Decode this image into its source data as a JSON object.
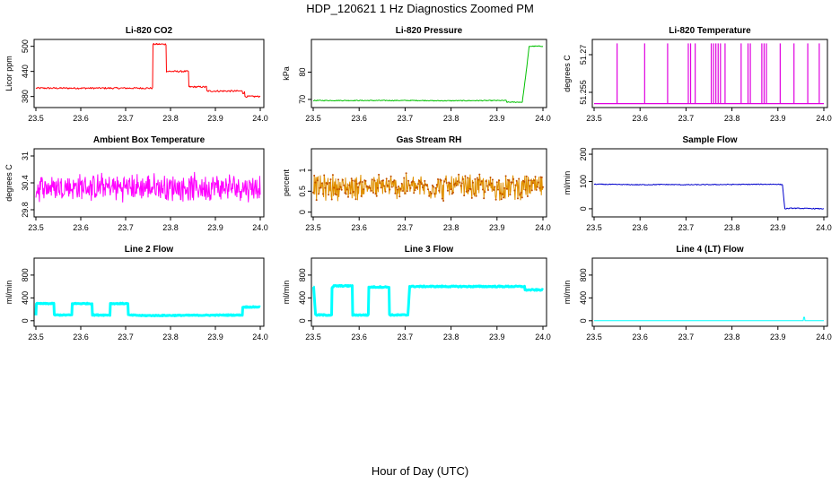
{
  "title": "HDP_120621  1 Hz Diagnostics Zoomed PM",
  "xlabel": "Hour of Day (UTC)",
  "chart_data": [
    {
      "type": "line",
      "title": "Li-820 CO2",
      "ylabel": "Licor ppm",
      "color": "#ff0000",
      "xlim": [
        23.5,
        24.0
      ],
      "ylim": [
        360,
        510
      ],
      "xticks": [
        "23.5",
        "23.6",
        "23.7",
        "23.8",
        "23.9",
        "24.0"
      ],
      "yticks": [
        380,
        440,
        500
      ],
      "noise": 2,
      "thick": 1,
      "x": [
        23.5,
        23.76,
        23.761,
        23.79,
        23.791,
        23.84,
        23.841,
        23.88,
        23.881,
        23.96,
        23.961,
        23.965,
        23.966,
        24.0
      ],
      "y": [
        400,
        400,
        505,
        505,
        440,
        440,
        403,
        403,
        393,
        393,
        388,
        390,
        380,
        380
      ]
    },
    {
      "type": "line",
      "title": "Li-820 Pressure",
      "ylabel": "kPa",
      "color": "#00c000",
      "xlim": [
        23.5,
        24.0
      ],
      "ylim": [
        68,
        91
      ],
      "xticks": [
        "23.5",
        "23.6",
        "23.7",
        "23.8",
        "23.9",
        "24.0"
      ],
      "yticks": [
        70,
        80
      ],
      "noise": 0.15,
      "thick": 1,
      "x": [
        23.5,
        23.75,
        23.76,
        23.92,
        23.921,
        23.955,
        23.965,
        23.97,
        24.0
      ],
      "y": [
        69.6,
        69.6,
        69.5,
        69.6,
        69,
        69,
        82,
        89.5,
        89.5
      ]
    },
    {
      "type": "spikes",
      "title": "Li-820 Temperature",
      "ylabel": "degrees C",
      "color": "#e000e0",
      "xlim": [
        23.5,
        24.0
      ],
      "ylim": [
        51.25,
        51.275
      ],
      "xticks": [
        "23.5",
        "23.6",
        "23.7",
        "23.8",
        "23.9",
        "24.0"
      ],
      "yticks": [
        51.255,
        51.27
      ],
      "base": 51.2505,
      "top": 51.2745,
      "x": [
        23.55,
        23.61,
        23.66,
        23.705,
        23.71,
        23.72,
        23.755,
        23.76,
        23.765,
        23.77,
        23.775,
        23.785,
        23.82,
        23.835,
        23.84,
        23.865,
        23.87,
        23.875,
        23.905,
        23.935,
        23.965,
        23.99
      ]
    },
    {
      "type": "noise",
      "title": "Ambient Box Temperature",
      "ylabel": "degrees C",
      "color": "#ff00ff",
      "xlim": [
        23.5,
        24.0
      ],
      "ylim": [
        29.7,
        31.1
      ],
      "xticks": [
        "23.5",
        "23.6",
        "23.7",
        "23.8",
        "23.9",
        "24.0"
      ],
      "yticks": [
        29.8,
        30.4,
        31.0
      ],
      "center": 30.3,
      "spread": 0.32,
      "n": 450,
      "markers": false,
      "thick": 1,
      "x_start": 23.5,
      "x_end": 24.0
    },
    {
      "type": "noise",
      "title": "Gas Stream RH",
      "ylabel": "percent",
      "color": "#e09000",
      "xlim": [
        23.5,
        24.0
      ],
      "ylim": [
        -0.05,
        1.45
      ],
      "xticks": [
        "23.5",
        "23.6",
        "23.7",
        "23.8",
        "23.9",
        "24.0"
      ],
      "yticks": [
        0.0,
        0.5,
        1.0
      ],
      "center": 0.6,
      "spread": 0.32,
      "n": 420,
      "markers": true,
      "thick": 1,
      "x_start": 23.5,
      "x_end": 24.0
    },
    {
      "type": "line",
      "title": "Sample Flow",
      "ylabel": "ml/min",
      "color": "#0000cc",
      "xlim": [
        23.5,
        24.0
      ],
      "ylim": [
        -20,
        210
      ],
      "xticks": [
        "23.5",
        "23.6",
        "23.7",
        "23.8",
        "23.9",
        "24.0"
      ],
      "yticks": [
        0,
        100,
        200
      ],
      "noise": 1.5,
      "thick": 1,
      "x": [
        23.5,
        23.6,
        23.65,
        23.7,
        23.8,
        23.9,
        23.91,
        23.915,
        23.93,
        24.0
      ],
      "y": [
        90,
        88,
        89,
        88,
        89,
        90,
        88,
        0,
        2,
        0
      ]
    },
    {
      "type": "line",
      "title": "Line 2 Flow",
      "ylabel": "ml/min",
      "color": "#00ffff",
      "xlim": [
        23.5,
        24.0
      ],
      "ylim": [
        -50,
        1050
      ],
      "xticks": [
        "23.5",
        "23.6",
        "23.7",
        "23.8",
        "23.9",
        "24.0"
      ],
      "yticks": [
        0,
        400,
        800
      ],
      "noise": 8,
      "thick": 3,
      "x": [
        23.5,
        23.501,
        23.54,
        23.541,
        23.58,
        23.581,
        23.625,
        23.626,
        23.665,
        23.666,
        23.705,
        23.706,
        23.74,
        23.96,
        23.961,
        24.0
      ],
      "y": [
        100,
        300,
        300,
        100,
        100,
        300,
        300,
        100,
        100,
        300,
        300,
        100,
        90,
        100,
        240,
        240
      ]
    },
    {
      "type": "line",
      "title": "Line 3 Flow",
      "ylabel": "ml/min",
      "color": "#00ffff",
      "xlim": [
        23.5,
        24.0
      ],
      "ylim": [
        -50,
        1050
      ],
      "xticks": [
        "23.5",
        "23.6",
        "23.7",
        "23.8",
        "23.9",
        "24.0"
      ],
      "yticks": [
        0,
        400,
        800
      ],
      "noise": 10,
      "thick": 3,
      "x": [
        23.5,
        23.501,
        23.505,
        23.54,
        23.541,
        23.545,
        23.585,
        23.586,
        23.62,
        23.621,
        23.625,
        23.665,
        23.666,
        23.705,
        23.706,
        23.71,
        23.96,
        23.961,
        24.0
      ],
      "y": [
        600,
        600,
        100,
        100,
        570,
        610,
        610,
        100,
        100,
        590,
        590,
        590,
        100,
        100,
        100,
        600,
        600,
        540,
        540
      ]
    },
    {
      "type": "line",
      "title": "Line 4 (LT) Flow",
      "ylabel": "ml/min",
      "color": "#00ffff",
      "xlim": [
        23.5,
        24.0
      ],
      "ylim": [
        -50,
        1050
      ],
      "xticks": [
        "23.5",
        "23.6",
        "23.7",
        "23.8",
        "23.9",
        "24.0"
      ],
      "yticks": [
        0,
        400,
        800
      ],
      "noise": 0,
      "thick": 1,
      "x": [
        23.5,
        23.955,
        23.956,
        23.958,
        23.959,
        24.0
      ],
      "y": [
        0,
        0,
        60,
        60,
        0,
        0
      ]
    }
  ]
}
